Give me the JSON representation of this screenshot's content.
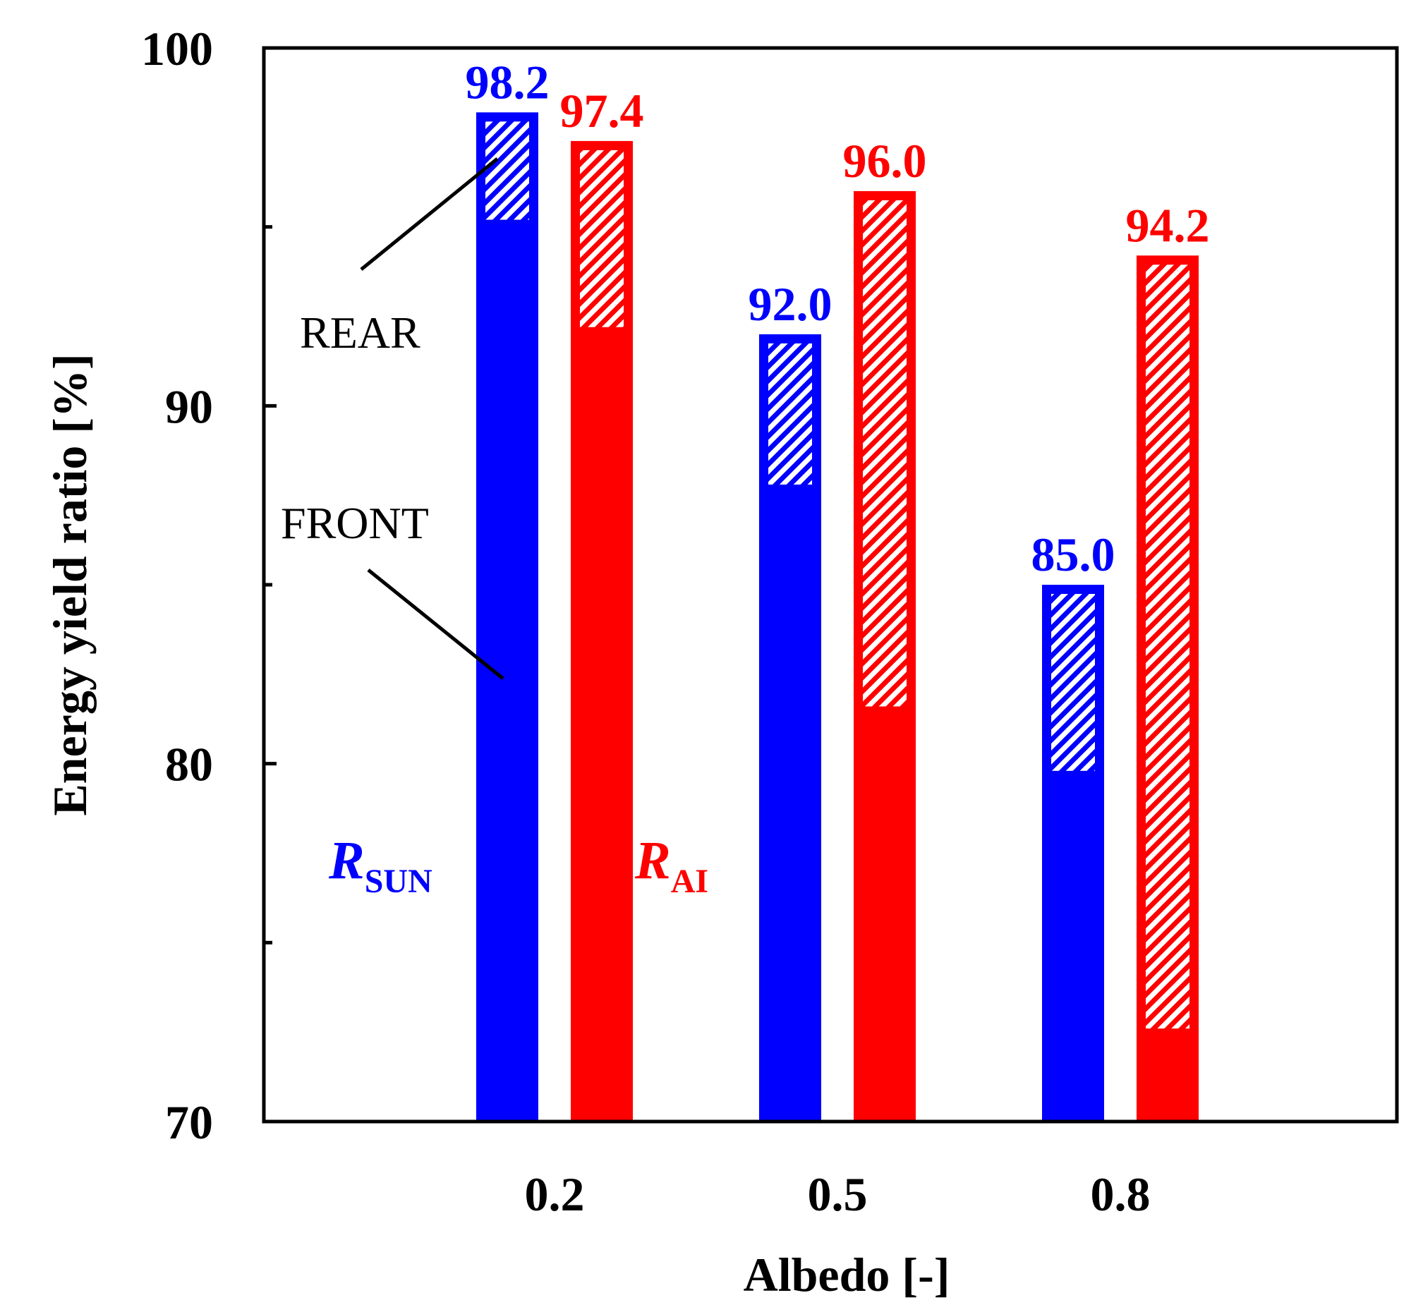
{
  "chart_data": {
    "type": "bar",
    "title": "",
    "xlabel": "Albedo [-]",
    "ylabel": "Energy yield ratio [%]",
    "ylim": [
      70,
      100
    ],
    "yticks": [
      70,
      80,
      90,
      100
    ],
    "yticks_minor": [
      75,
      85,
      95
    ],
    "categories": [
      "0.2",
      "0.5",
      "0.8"
    ],
    "series": [
      {
        "name": "R_SUN",
        "label_main": "R",
        "label_sub": "SUN",
        "color": "#0000ff",
        "values": [
          98.2,
          92.0,
          85.0
        ],
        "front_values": [
          95.2,
          87.8,
          79.8
        ],
        "value_labels": [
          "98.2",
          "92.0",
          "85.0"
        ]
      },
      {
        "name": "R_AI",
        "label_main": "R",
        "label_sub": "AI",
        "color": "#ff0000",
        "values": [
          97.4,
          96.0,
          94.2
        ],
        "front_values": [
          92.2,
          81.6,
          72.6
        ],
        "value_labels": [
          "97.4",
          "96.0",
          "94.2"
        ]
      }
    ],
    "annotations": {
      "rear": "REAR",
      "front": "FRONT"
    },
    "stack_parts": [
      "FRONT (solid)",
      "REAR (hatched)"
    ]
  }
}
